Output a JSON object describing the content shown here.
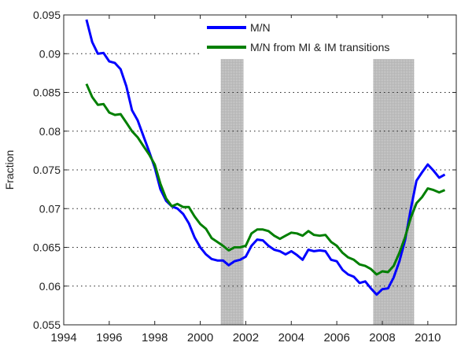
{
  "chart_data": {
    "type": "line",
    "title": "",
    "xlabel": "",
    "ylabel": "Fraction",
    "xlim": [
      1994,
      2011.25
    ],
    "ylim": [
      0.055,
      0.095
    ],
    "xticks": [
      "1994",
      "1996",
      "1998",
      "2000",
      "2002",
      "2004",
      "2006",
      "2008",
      "2010"
    ],
    "yticks": [
      "0.055",
      "0.06",
      "0.065",
      "0.07",
      "0.075",
      "0.08",
      "0.085",
      "0.09",
      "0.095"
    ],
    "grid": "horizontal dotted",
    "legend_position": "top",
    "shaded_periods": [
      [
        2000.9,
        2001.9
      ],
      [
        2007.6,
        2009.4
      ]
    ],
    "shade_color": "#b4b4b4",
    "x": [
      1995.0,
      1995.25,
      1995.5,
      1995.75,
      1996.0,
      1996.25,
      1996.5,
      1996.75,
      1997.0,
      1997.25,
      1997.5,
      1997.75,
      1998.0,
      1998.25,
      1998.5,
      1998.75,
      1999.0,
      1999.25,
      1999.5,
      1999.75,
      2000.0,
      2000.25,
      2000.5,
      2000.75,
      2001.0,
      2001.25,
      2001.5,
      2001.75,
      2002.0,
      2002.25,
      2002.5,
      2002.75,
      2003.0,
      2003.25,
      2003.5,
      2003.75,
      2004.0,
      2004.25,
      2004.5,
      2004.75,
      2005.0,
      2005.25,
      2005.5,
      2005.75,
      2006.0,
      2006.25,
      2006.5,
      2006.75,
      2007.0,
      2007.25,
      2007.5,
      2007.75,
      2008.0,
      2008.25,
      2008.5,
      2008.75,
      2009.0,
      2009.25,
      2009.5,
      2009.75,
      2010.0,
      2010.25,
      2010.5,
      2010.75
    ],
    "series": [
      {
        "name": "M/N",
        "color": "#0000ff",
        "values": [
          0.0944,
          0.0915,
          0.09,
          0.0901,
          0.089,
          0.0888,
          0.088,
          0.0858,
          0.0827,
          0.0814,
          0.0794,
          0.0774,
          0.0753,
          0.0725,
          0.071,
          0.0703,
          0.07,
          0.0693,
          0.0681,
          0.0663,
          0.065,
          0.0641,
          0.0635,
          0.0633,
          0.0633,
          0.0627,
          0.0632,
          0.0634,
          0.0638,
          0.0652,
          0.066,
          0.0659,
          0.0652,
          0.0647,
          0.0645,
          0.0641,
          0.0645,
          0.064,
          0.0634,
          0.0647,
          0.0645,
          0.0646,
          0.0645,
          0.0634,
          0.0632,
          0.0621,
          0.0615,
          0.0612,
          0.0604,
          0.0606,
          0.0597,
          0.0589,
          0.0596,
          0.0597,
          0.0611,
          0.0632,
          0.0659,
          0.0699,
          0.0736,
          0.0747,
          0.0757,
          0.0749,
          0.074,
          0.0744
        ]
      },
      {
        "name": "M/N from MI & IM transitions",
        "color": "#007f00",
        "values": [
          0.0861,
          0.0844,
          0.0834,
          0.0835,
          0.0824,
          0.0821,
          0.0822,
          0.0811,
          0.08,
          0.0792,
          0.0781,
          0.077,
          0.0757,
          0.0732,
          0.0713,
          0.0703,
          0.0706,
          0.0702,
          0.0702,
          0.069,
          0.068,
          0.0674,
          0.0662,
          0.0657,
          0.0652,
          0.0646,
          0.065,
          0.065,
          0.0652,
          0.0668,
          0.0673,
          0.0673,
          0.0671,
          0.0665,
          0.0661,
          0.0665,
          0.0669,
          0.0668,
          0.0665,
          0.0671,
          0.0666,
          0.0665,
          0.0666,
          0.0657,
          0.0652,
          0.0643,
          0.0637,
          0.0634,
          0.0628,
          0.0626,
          0.0622,
          0.0615,
          0.0619,
          0.0618,
          0.0626,
          0.0643,
          0.0663,
          0.0688,
          0.0707,
          0.0715,
          0.0726,
          0.0724,
          0.0721,
          0.0724
        ]
      }
    ]
  }
}
